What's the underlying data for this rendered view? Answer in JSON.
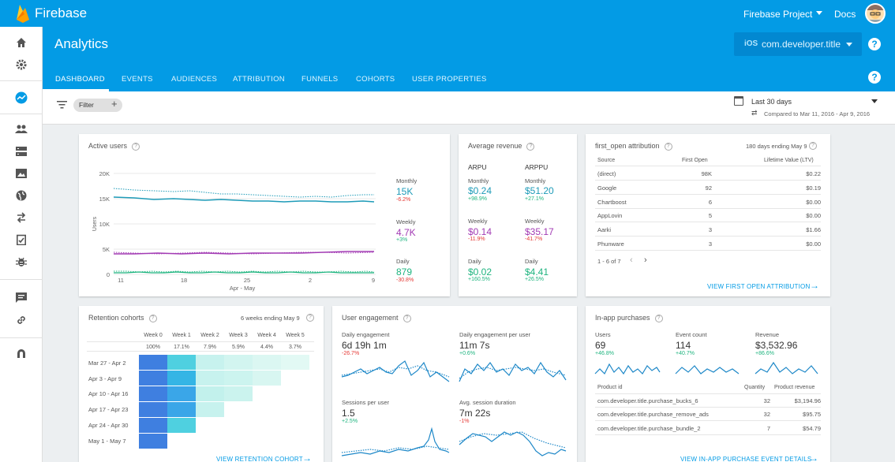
{
  "topbar": {
    "brand": "Firebase",
    "project": "Firebase Project",
    "docs": "Docs"
  },
  "header": {
    "title": "Analytics",
    "app_platform": "iOS",
    "app_name": "com.developer.title"
  },
  "tabs": [
    "DASHBOARD",
    "EVENTS",
    "AUDIENCES",
    "ATTRIBUTION",
    "FUNNELS",
    "COHORTS",
    "USER PROPERTIES"
  ],
  "filterbar": {
    "filter_label": "Filter",
    "date_range": "Last 30 days",
    "compared": "Compared to Mar 11, 2016 - Apr 9, 2016"
  },
  "active_users": {
    "title": "Active users",
    "y_ticks": [
      "20K",
      "15K",
      "10K",
      "5K",
      "0"
    ],
    "x_ticks": [
      "11",
      "18",
      "25",
      "2",
      "9"
    ],
    "x_month": "Apr - May",
    "y_axis": "Users",
    "metrics": [
      {
        "label": "Monthly",
        "value": "15K",
        "delta": "-6.2%"
      },
      {
        "label": "Weekly",
        "value": "4.7K",
        "delta": "+3%"
      },
      {
        "label": "Daily",
        "value": "879",
        "delta": "-30.8%"
      }
    ]
  },
  "avg_revenue": {
    "title": "Average revenue",
    "col1": "ARPU",
    "col2": "ARPPU",
    "rows": [
      {
        "label": "Monthly",
        "arpu": "$0.24",
        "arpu_delta": "+98.9%",
        "arppu": "$51.20",
        "arppu_delta": "+27.1%"
      },
      {
        "label": "Weekly",
        "arpu": "$0.14",
        "arpu_delta": "-11.9%",
        "arppu": "$35.17",
        "arppu_delta": "-41.7%"
      },
      {
        "label": "Daily",
        "arpu": "$0.02",
        "arpu_delta": "+160.5%",
        "arppu": "$4.41",
        "arppu_delta": "+26.5%"
      }
    ]
  },
  "attribution": {
    "title": "first_open attribution",
    "period": "180 days ending May 9",
    "headers": [
      "Source",
      "First Open",
      "Lifetime Value (LTV)"
    ],
    "rows": [
      [
        "(direct)",
        "98K",
        "$0.22"
      ],
      [
        "Google",
        "92",
        "$0.19"
      ],
      [
        "Chartboost",
        "6",
        "$0.00"
      ],
      [
        "AppLovin",
        "5",
        "$0.00"
      ],
      [
        "Aarki",
        "3",
        "$1.66"
      ],
      [
        "Phunware",
        "3",
        "$0.00"
      ]
    ],
    "pagination": "1 - 6 of 7",
    "link": "VIEW FIRST OPEN ATTRIBUTION"
  },
  "retention": {
    "title": "Retention cohorts",
    "period": "6 weeks ending May 9",
    "weeks": [
      "Week 0",
      "Week 1",
      "Week 2",
      "Week 3",
      "Week 4",
      "Week 5"
    ],
    "totals": [
      "100%",
      "17.1%",
      "7.9%",
      "5.9%",
      "4.4%",
      "3.7%"
    ],
    "cohorts": [
      "Mar 27 - Apr 2",
      "Apr 3 - Apr 9",
      "Apr 10 - Apr 16",
      "Apr 17 - Apr 23",
      "Apr 24 - Apr 30",
      "May 1 - May 7"
    ],
    "link": "VIEW RETENTION COHORT"
  },
  "engagement": {
    "title": "User engagement",
    "metrics": [
      {
        "label": "Daily engagement",
        "value": "6d 19h 1m",
        "delta": "-26.7%"
      },
      {
        "label": "Daily engagement per user",
        "value": "11m 7s",
        "delta": "+0.6%"
      },
      {
        "label": "Sessions per user",
        "value": "1.5",
        "delta": "+2.5%"
      },
      {
        "label": "Avg. session duration",
        "value": "7m 22s",
        "delta": "-1%"
      }
    ]
  },
  "iap": {
    "title": "In-app purchases",
    "metrics": [
      {
        "label": "Users",
        "value": "69",
        "delta": "+46.8%"
      },
      {
        "label": "Event count",
        "value": "114",
        "delta": "+40.7%"
      },
      {
        "label": "Revenue",
        "value": "$3,532.96",
        "delta": "+86.6%"
      }
    ],
    "headers": [
      "Product id",
      "Quantity",
      "Product revenue"
    ],
    "rows": [
      [
        "com.developer.title.purchase_bucks_6",
        "32",
        "$3,194.96"
      ],
      [
        "com.developer.title.purchase_remove_ads",
        "32",
        "$95.75"
      ],
      [
        "com.developer.title.purchase_bundle_2",
        "7",
        "$54.79"
      ]
    ],
    "link": "VIEW IN-APP PURCHASE EVENT DETAILS"
  },
  "colors": {
    "brand": "#039be5",
    "monthly": "#1e9bb8",
    "weekly": "#a23bb4",
    "daily": "#1eb47f",
    "negative": "#e53935"
  }
}
